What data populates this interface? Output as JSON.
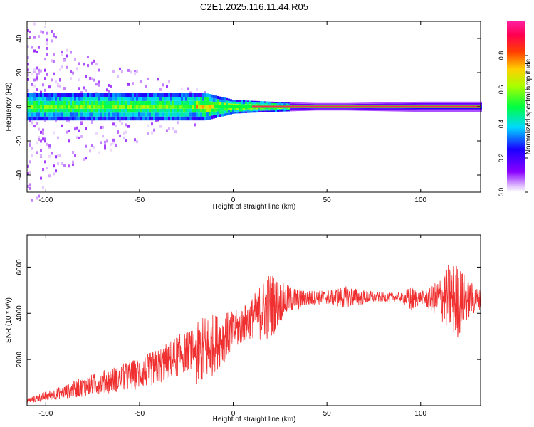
{
  "title": "C2E1.2025.116.11.44.R05",
  "colors": {
    "snr_line": "#f03030",
    "axis": "#000000",
    "spectrum_ridge": "#ff2a55"
  },
  "chart_data": [
    {
      "type": "heatmap",
      "xlabel": "Height of straight line (km)",
      "ylabel": "Frequency (Hz)",
      "xlim": [
        -110,
        132
      ],
      "ylim": [
        -50,
        50
      ],
      "x_ticks": [
        -100,
        -50,
        0,
        50,
        100
      ],
      "x_tick_labels": [
        "-100",
        "-50",
        "0",
        "50",
        "100"
      ],
      "y_ticks": [
        -40,
        -20,
        0,
        20,
        40
      ],
      "y_tick_labels": [
        "-40",
        "-20",
        "0",
        "20",
        "40"
      ],
      "colorbar": {
        "label": "Normalized spectral amplitude",
        "range": [
          0,
          1
        ],
        "ticks": [
          0.0,
          0.2,
          0.4,
          0.6,
          0.8
        ],
        "tick_labels": [
          "0.0",
          "0.2",
          "0.4",
          "0.6",
          "0.8"
        ],
        "colormap": "rainbow: violet-blue-cyan-green-yellow-red-magenta"
      },
      "description_values": {
        "ridge_frequency_hz": 0,
        "spread_hz_at_x": [
          [
            -110,
            50
          ],
          [
            -90,
            30
          ],
          [
            -70,
            22
          ],
          [
            -50,
            18
          ],
          [
            -30,
            12
          ],
          [
            -15,
            8
          ],
          [
            0,
            4
          ],
          [
            20,
            3
          ],
          [
            50,
            2
          ],
          [
            100,
            3
          ],
          [
            132,
            3
          ]
        ]
      },
      "grid": false
    },
    {
      "type": "line",
      "xlabel": "Height of straight line (km)",
      "ylabel": "SNR (10 * v/v)",
      "xlim": [
        -110,
        132
      ],
      "ylim": [
        0,
        7400
      ],
      "x_ticks": [
        -100,
        -50,
        0,
        50,
        100
      ],
      "x_tick_labels": [
        "-100",
        "-50",
        "0",
        "50",
        "100"
      ],
      "y_ticks": [
        2000,
        4000,
        6000
      ],
      "y_tick_labels": [
        "2000",
        "4000",
        "6000"
      ],
      "series_envelope": {
        "x": [
          -110,
          -100,
          -90,
          -80,
          -70,
          -60,
          -50,
          -40,
          -30,
          -20,
          -15,
          -10,
          -5,
          0,
          5,
          10,
          15,
          20,
          25,
          30,
          40,
          50,
          60,
          70,
          80,
          90,
          95,
          100,
          105,
          110,
          115,
          120,
          125,
          132
        ],
        "baseline": [
          150,
          300,
          450,
          600,
          750,
          900,
          1050,
          1300,
          1700,
          2100,
          2400,
          2700,
          2950,
          3200,
          3500,
          3800,
          4100,
          4350,
          4500,
          4600,
          4650,
          4700,
          4700,
          4700,
          4700,
          4700,
          4600,
          4700,
          4600,
          4650,
          4700,
          4500,
          4600,
          4600
        ],
        "noise_amplitude": [
          200,
          350,
          500,
          700,
          850,
          1000,
          1150,
          1300,
          1500,
          1400,
          1600,
          1300,
          1100,
          900,
          800,
          900,
          1300,
          1500,
          900,
          600,
          350,
          300,
          500,
          300,
          200,
          200,
          600,
          250,
          500,
          900,
          1500,
          1700,
          900,
          400
        ]
      },
      "grid": false
    }
  ]
}
